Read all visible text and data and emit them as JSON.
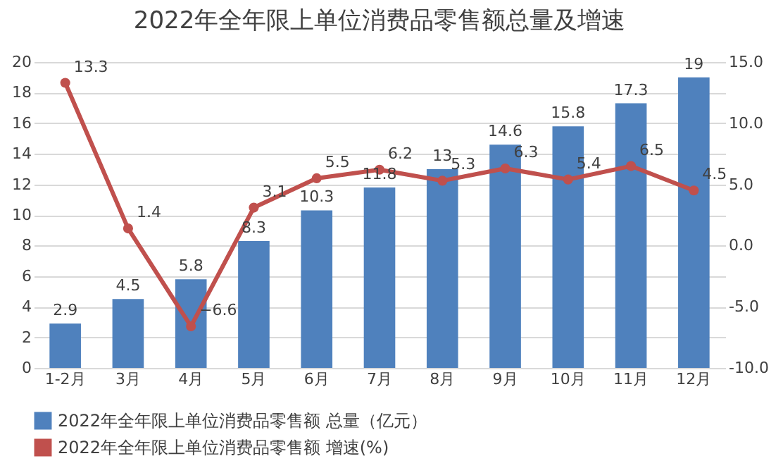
{
  "chart_data": {
    "type": "bar",
    "title": "2022年全年限上单位消费品零售额总量及增速",
    "categories": [
      "1-2月",
      "3月",
      "4月",
      "5月",
      "6月",
      "7月",
      "8月",
      "9月",
      "10月",
      "11月",
      "12月"
    ],
    "series": [
      {
        "name": "2022年全年限上单位消费品零售额 总量（亿元）",
        "color": "#4f81bd",
        "values": [
          2.9,
          4.5,
          5.8,
          8.3,
          10.3,
          11.8,
          13,
          14.6,
          15.8,
          17.3,
          19
        ]
      },
      {
        "name": "2022年全年限上单位消费品零售额 增速(%)",
        "type": "line",
        "axis": "y2",
        "color": "#c0504d",
        "values": [
          13.3,
          1.4,
          -6.6,
          3.1,
          5.5,
          6.2,
          5.3,
          6.3,
          5.4,
          6.5,
          4.5
        ]
      }
    ],
    "ylim": [
      0,
      20
    ],
    "yticks": [
      0,
      2,
      4,
      6,
      8,
      10,
      12,
      14,
      16,
      18,
      20
    ],
    "y2lim": [
      -10,
      15
    ],
    "y2ticks": [
      {
        "value": -10,
        "label": "-10.0"
      },
      {
        "value": -5,
        "label": "-5.0"
      },
      {
        "value": 0,
        "label": "0.0"
      },
      {
        "value": 5,
        "label": "5.0"
      },
      {
        "value": 10,
        "label": "10.0"
      },
      {
        "value": 15,
        "label": "15.0"
      }
    ],
    "grid": "y",
    "legend": "bottom",
    "marker": "circle",
    "data_labels": true
  }
}
